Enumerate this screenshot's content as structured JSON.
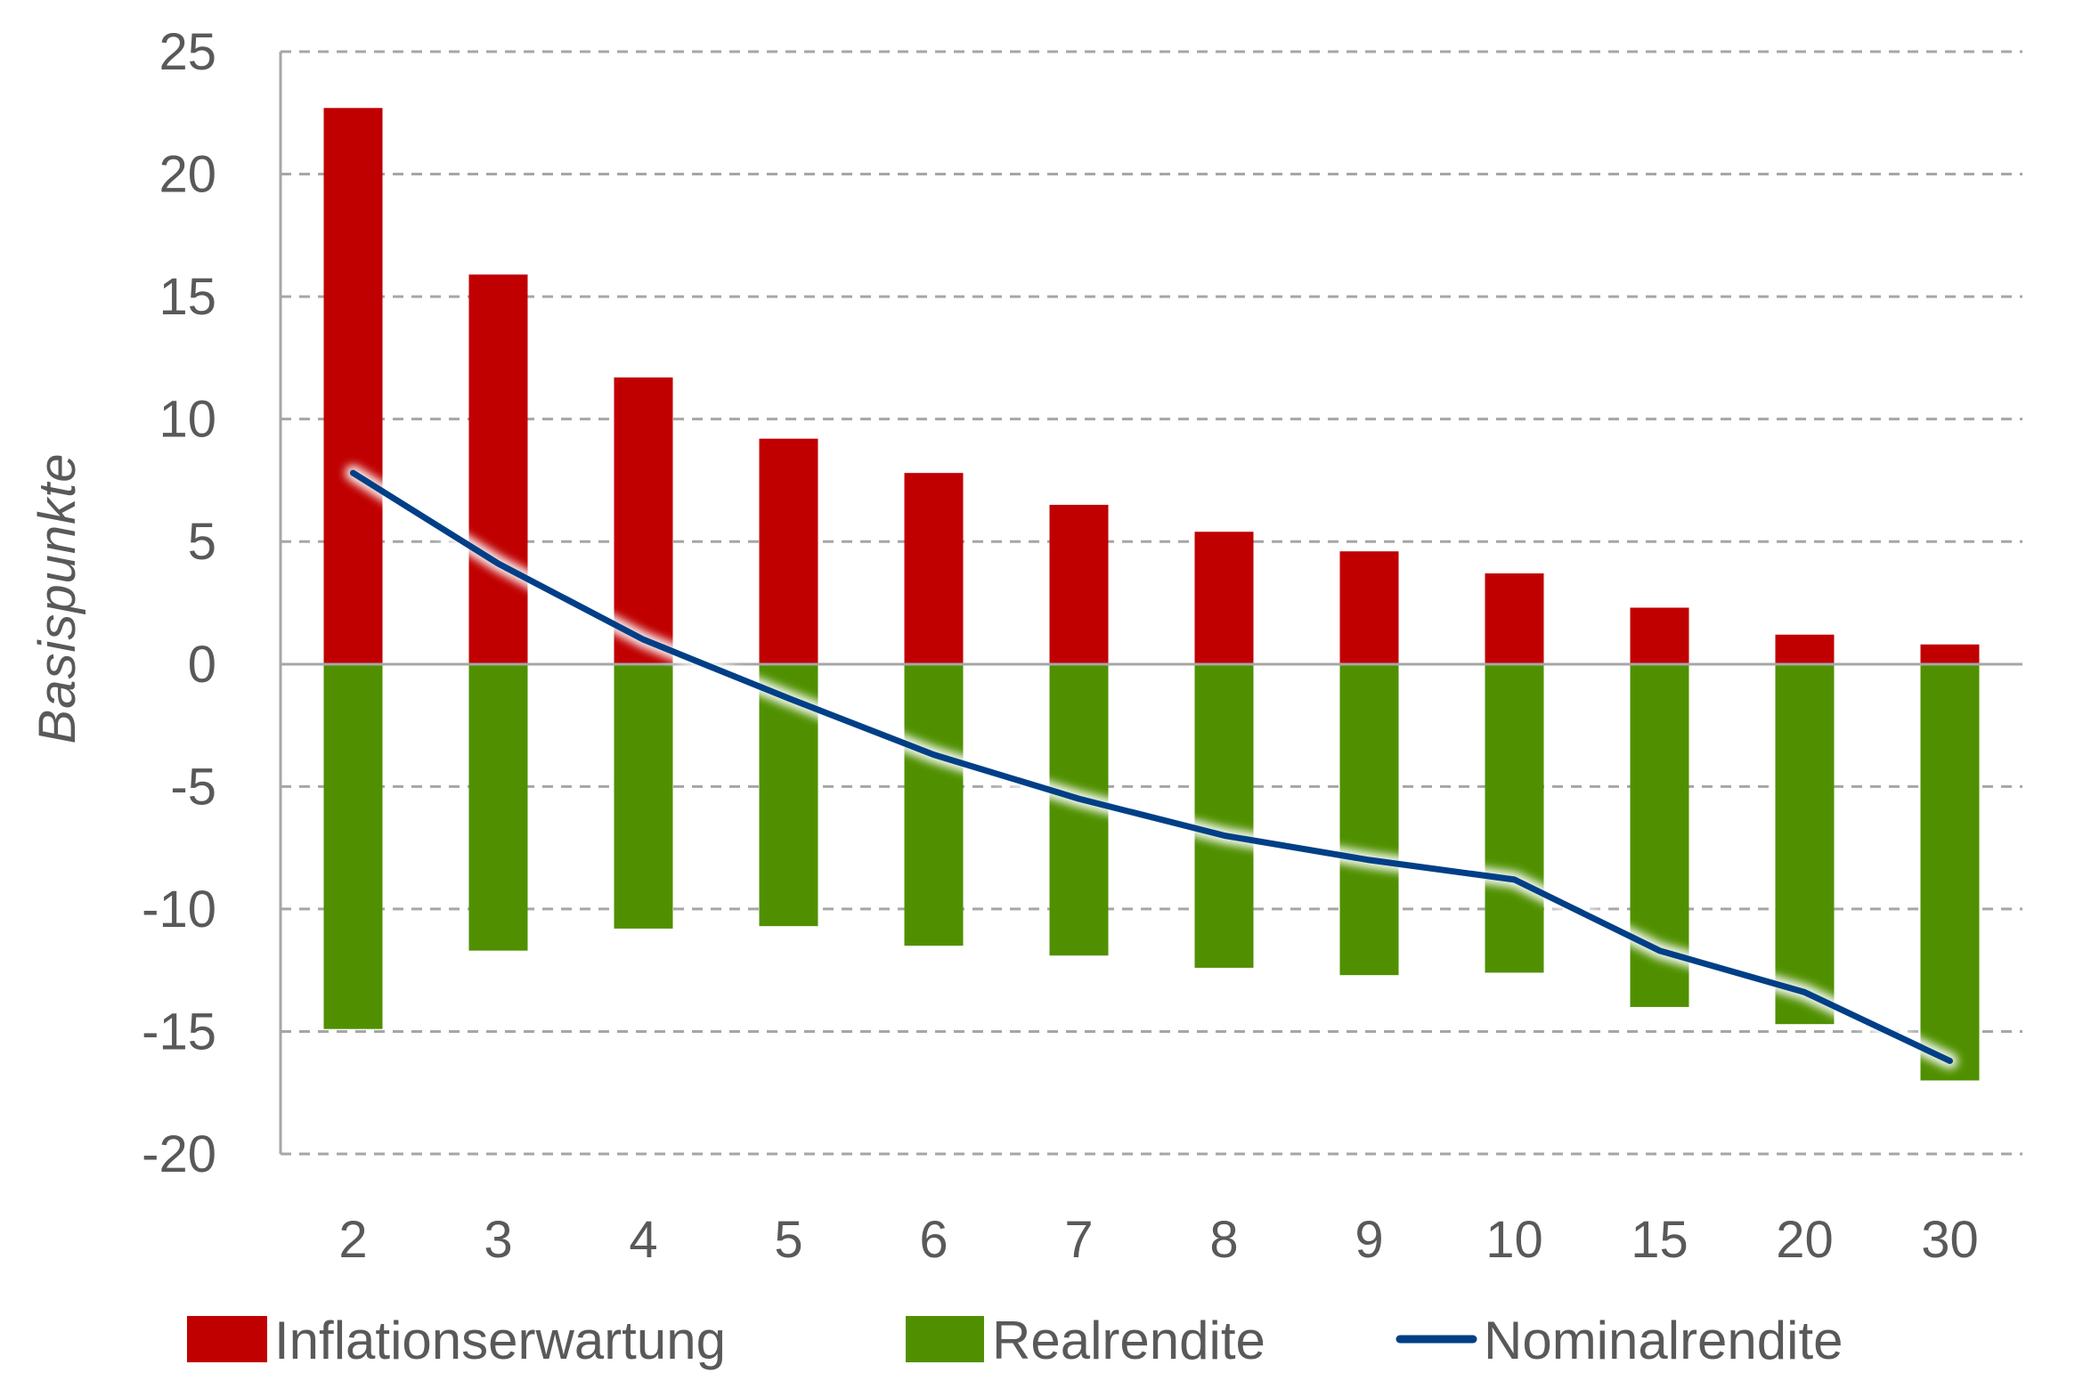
{
  "chart_data": {
    "type": "bar",
    "subtype": "stacked bar with line overlay",
    "title": "",
    "xlabel": "",
    "ylabel": "Basispunkte",
    "ylim": [
      -20,
      25
    ],
    "yticks": [
      25,
      20,
      15,
      10,
      5,
      0,
      -5,
      -10,
      -15,
      -20
    ],
    "grid": "horizontal dashed",
    "legend_position": "bottom",
    "categories": [
      "2",
      "3",
      "4",
      "5",
      "6",
      "7",
      "8",
      "9",
      "10",
      "15",
      "20",
      "30"
    ],
    "series": [
      {
        "name": "Inflationserwartung",
        "type": "bar",
        "color": "#C00000",
        "values": [
          22.7,
          15.9,
          11.7,
          9.2,
          7.8,
          6.5,
          5.4,
          4.6,
          3.7,
          2.3,
          1.2,
          0.8
        ]
      },
      {
        "name": "Realrendite",
        "type": "bar",
        "color": "#509000",
        "values": [
          -14.9,
          -11.7,
          -10.8,
          -10.7,
          -11.5,
          -11.9,
          -12.4,
          -12.7,
          -12.6,
          -14.0,
          -14.7,
          -17.0
        ]
      },
      {
        "name": "Nominalrendite",
        "type": "line",
        "color": "#003F87",
        "values": [
          7.8,
          4.1,
          1.0,
          -1.4,
          -3.7,
          -5.5,
          -7.0,
          -8.0,
          -8.8,
          -11.7,
          -13.4,
          -16.2
        ]
      }
    ]
  },
  "legend": {
    "items": [
      {
        "label": "Inflationserwartung",
        "symbol": "square",
        "color": "#C00000"
      },
      {
        "label": "Realrendite",
        "symbol": "square",
        "color": "#509000"
      },
      {
        "label": "Nominalrendite",
        "symbol": "line",
        "color": "#003F87"
      }
    ]
  },
  "colors": {
    "text": "#595959",
    "axis": "#A6A6A6",
    "grid": "#A6A6A6",
    "background": "#FFFFFF"
  }
}
